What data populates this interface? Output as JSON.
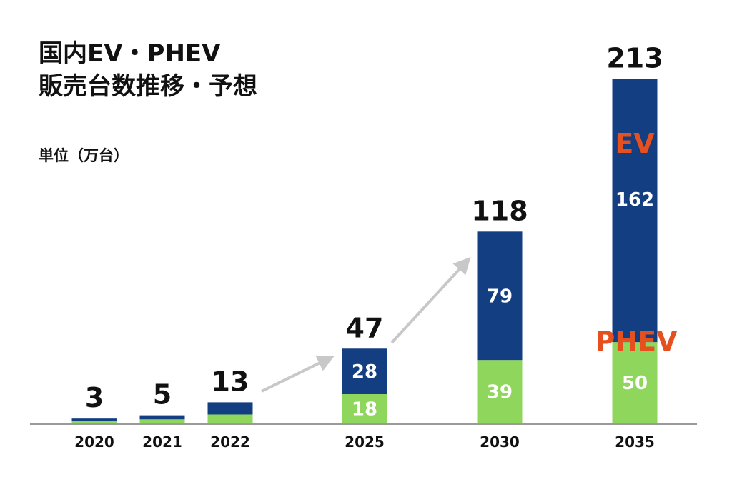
{
  "title_line1": "国内EV・PHEV",
  "title_line2": "販売台数推移・予想",
  "unit_label": "単位（万台）",
  "colors": {
    "ev": "#133f82",
    "phev": "#8fd65c",
    "legend": "#e6501e",
    "arrow": "#c8c8c8",
    "axis": "#9a9a9a"
  },
  "chart_data": {
    "type": "bar",
    "stacked": true,
    "categories": [
      "2020",
      "2021",
      "2022",
      "2025",
      "2030",
      "2035"
    ],
    "series": [
      {
        "name": "PHEV",
        "values": [
          1.5,
          2.5,
          5.5,
          18,
          39,
          50
        ],
        "labels": [
          "",
          "",
          "",
          "18",
          "39",
          "50"
        ]
      },
      {
        "name": "EV",
        "values": [
          1.5,
          2.5,
          7.5,
          28,
          79,
          162
        ],
        "labels": [
          "",
          "",
          "",
          "28",
          "79",
          "162"
        ]
      }
    ],
    "totals": [
      "3",
      "5",
      "13",
      "47",
      "118",
      "213"
    ],
    "ylim": [
      0,
      213
    ]
  }
}
